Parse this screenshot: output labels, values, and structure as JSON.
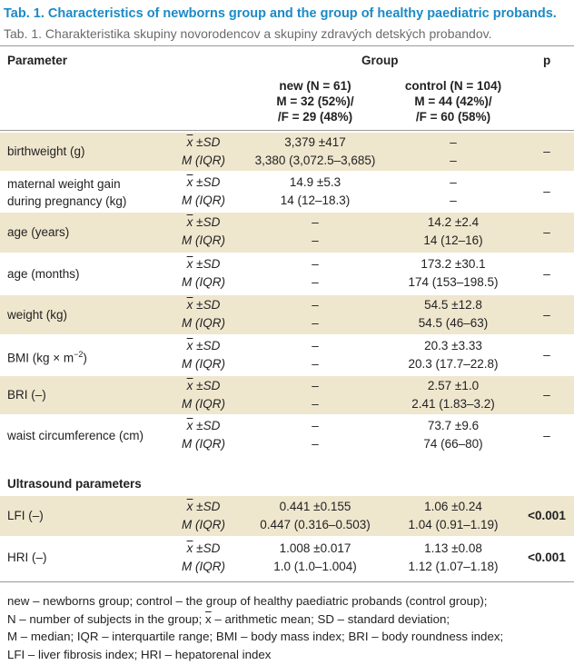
{
  "title": {
    "en": "Tab. 1. Characteristics of newborns group and the group of healthy paediatric probands.",
    "sk": "Tab. 1. Charakteristika skupiny novorodencov a skupiny zdravých detských probandov."
  },
  "header": {
    "parameter": "Parameter",
    "group": "Group",
    "p": "p",
    "new_line1": "new (N = 61)",
    "new_line2": "M = 32 (52%)/",
    "new_line3": "/F = 29 (48%)",
    "control_line1": "control (N = 104)",
    "control_line2": "M = 44 (42%)/",
    "control_line3": "/F = 60 (58%)"
  },
  "stat_labels": {
    "mean_x": "x",
    "mean_rest": " ±SD",
    "median": "M (IQR)"
  },
  "rows": [
    {
      "label1": "birthweight (g)",
      "label2": "",
      "new_mean": "3,379 ±417",
      "new_median": "3,380 (3,072.5–3,685)",
      "ctl_mean": "–",
      "ctl_median": "–",
      "p": "–"
    },
    {
      "label1": "maternal weight gain",
      "label2": "during pregnancy (kg)",
      "new_mean": "14.9 ±5.3",
      "new_median": "14 (12–18.3)",
      "ctl_mean": "–",
      "ctl_median": "–",
      "p": "–"
    },
    {
      "label1": "age (years)",
      "label2": "",
      "new_mean": "–",
      "new_median": "–",
      "ctl_mean": "14.2 ±2.4",
      "ctl_median": "14 (12–16)",
      "p": "–"
    },
    {
      "label1": "age (months)",
      "label2": "",
      "new_mean": "–",
      "new_median": "–",
      "ctl_mean": "173.2 ±30.1",
      "ctl_median": "174 (153–198.5)",
      "p": "–"
    },
    {
      "label1": "weight (kg)",
      "label2": "",
      "new_mean": "–",
      "new_median": "–",
      "ctl_mean": "54.5 ±12.8",
      "ctl_median": "54.5 (46–63)",
      "p": "–"
    },
    {
      "label1": "BMI (kg × m",
      "label_sup": "−2",
      "label_tail": ")",
      "new_mean": "–",
      "new_median": "–",
      "ctl_mean": "20.3 ±3.33",
      "ctl_median": "20.3 (17.7–22.8)",
      "p": "–"
    },
    {
      "label1": "BRI (–)",
      "label2": "",
      "new_mean": "–",
      "new_median": "–",
      "ctl_mean": "2.57 ±1.0",
      "ctl_median": "2.41 (1.83–3.2)",
      "p": "–"
    },
    {
      "label1": "waist circumference (cm)",
      "label2": "",
      "new_mean": "–",
      "new_median": "–",
      "ctl_mean": "73.7 ±9.6",
      "ctl_median": "74 (66–80)",
      "p": "–"
    }
  ],
  "ultrasound": {
    "section_title": "Ultrasound parameters",
    "rows": [
      {
        "label1": "LFI (–)",
        "new_mean": "0.441 ±0.155",
        "new_median": "0.447 (0.316–0.503)",
        "ctl_mean": "1.06 ±0.24",
        "ctl_median": "1.04 (0.91–1.19)",
        "p": "<0.001"
      },
      {
        "label1": "HRI (–)",
        "new_mean": "1.008 ±0.017",
        "new_median": "1.0 (1.0–1.004)",
        "ctl_mean": "1.13 ±0.08",
        "ctl_median": "1.12 (1.07–1.18)",
        "p": "<0.001"
      }
    ]
  },
  "footnote": {
    "line1": "new – newborns group; control – the group of healthy paediatric probands (control group);",
    "line2a": "N – number of subjects in the group; ",
    "line2_x": "x",
    "line2b": " – arithmetic mean; SD – standard deviation;",
    "line3": "M – median; IQR – interquartile range; BMI – body mass index; BRI – body roundness index;",
    "line4": "LFI – liver fibrosis index; HRI – hepatorenal index"
  },
  "colors": {
    "title": "#1c8ac6",
    "shade": "#efe6ce",
    "rule": "#9a9a9a"
  }
}
